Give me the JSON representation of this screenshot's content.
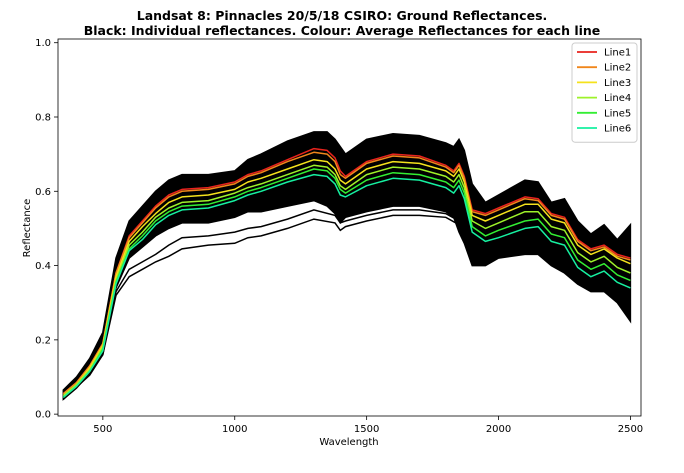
{
  "chart_data": {
    "type": "line",
    "title_line1": "Landsat 8: Pinnacles 20/5/18 CSIRO: Ground Reflectances.",
    "title_line2": "Black: Individual reflectances. Colour: Average Reflectances for each line",
    "xlabel": "Wavelength",
    "ylabel": "Reflectance",
    "xlim": [
      330,
      2540
    ],
    "ylim": [
      -0.005,
      1.01
    ],
    "xticks": [
      500,
      1000,
      1500,
      2000,
      2500
    ],
    "yticks": [
      0.0,
      0.2,
      0.4,
      0.6,
      0.8,
      1.0
    ],
    "legend_position": "top-right",
    "grid": false,
    "envelope": {
      "name": "Individual reflectances",
      "color": "#000000",
      "x": [
        350,
        400,
        450,
        500,
        550,
        600,
        650,
        700,
        750,
        800,
        900,
        1000,
        1050,
        1100,
        1200,
        1300,
        1350,
        1380,
        1400,
        1420,
        1500,
        1600,
        1700,
        1800,
        1830,
        1850,
        1870,
        1900,
        1950,
        2000,
        2100,
        2150,
        2200,
        2250,
        2300,
        2350,
        2400,
        2450,
        2500
      ],
      "upper": [
        0.065,
        0.1,
        0.15,
        0.22,
        0.42,
        0.52,
        0.56,
        0.6,
        0.63,
        0.645,
        0.645,
        0.655,
        0.685,
        0.7,
        0.735,
        0.76,
        0.76,
        0.74,
        0.72,
        0.7,
        0.74,
        0.755,
        0.75,
        0.73,
        0.72,
        0.74,
        0.71,
        0.62,
        0.57,
        0.59,
        0.63,
        0.625,
        0.57,
        0.58,
        0.52,
        0.485,
        0.51,
        0.47,
        0.51
      ],
      "lower": [
        0.04,
        0.07,
        0.11,
        0.16,
        0.34,
        0.42,
        0.45,
        0.48,
        0.5,
        0.515,
        0.515,
        0.53,
        0.545,
        0.545,
        0.56,
        0.575,
        0.56,
        0.54,
        0.515,
        0.53,
        0.545,
        0.56,
        0.56,
        0.545,
        0.53,
        0.49,
        0.46,
        0.4,
        0.4,
        0.42,
        0.43,
        0.43,
        0.4,
        0.38,
        0.35,
        0.33,
        0.33,
        0.3,
        0.25
      ]
    },
    "outliers": [
      {
        "x": [
          350,
          450,
          500,
          550,
          600,
          650,
          700,
          750,
          800,
          900,
          1000,
          1050,
          1100,
          1200,
          1300,
          1380,
          1400,
          1420,
          1500,
          1600,
          1700,
          1800,
          1850
        ],
        "y": [
          0.04,
          0.11,
          0.17,
          0.33,
          0.39,
          0.41,
          0.43,
          0.455,
          0.475,
          0.48,
          0.49,
          0.5,
          0.505,
          0.525,
          0.55,
          0.535,
          0.515,
          0.52,
          0.535,
          0.55,
          0.55,
          0.54,
          0.52
        ]
      },
      {
        "x": [
          350,
          450,
          500,
          550,
          600,
          650,
          700,
          750,
          800,
          900,
          1000,
          1050,
          1100,
          1200,
          1300,
          1380,
          1400,
          1420,
          1500,
          1600,
          1700,
          1800,
          1850
        ],
        "y": [
          0.04,
          0.105,
          0.16,
          0.32,
          0.37,
          0.39,
          0.41,
          0.425,
          0.445,
          0.455,
          0.46,
          0.475,
          0.48,
          0.5,
          0.525,
          0.515,
          0.495,
          0.505,
          0.52,
          0.535,
          0.535,
          0.53,
          0.51
        ]
      }
    ],
    "x": [
      350,
      400,
      450,
      500,
      550,
      600,
      650,
      700,
      750,
      800,
      900,
      1000,
      1050,
      1100,
      1200,
      1300,
      1350,
      1380,
      1400,
      1420,
      1500,
      1600,
      1700,
      1800,
      1830,
      1850,
      1870,
      1900,
      1950,
      2000,
      2100,
      2150,
      2200,
      2250,
      2300,
      2350,
      2400,
      2450,
      2500
    ],
    "series": [
      {
        "name": "Line1",
        "color": "#e8231d",
        "values": [
          0.055,
          0.085,
          0.13,
          0.19,
          0.38,
          0.48,
          0.52,
          0.56,
          0.59,
          0.605,
          0.61,
          0.625,
          0.645,
          0.655,
          0.685,
          0.715,
          0.71,
          0.69,
          0.655,
          0.64,
          0.68,
          0.7,
          0.695,
          0.67,
          0.655,
          0.675,
          0.64,
          0.55,
          0.54,
          0.555,
          0.585,
          0.58,
          0.54,
          0.53,
          0.47,
          0.445,
          0.455,
          0.43,
          0.42
        ]
      },
      {
        "name": "Line2",
        "color": "#f0861b",
        "values": [
          0.055,
          0.085,
          0.13,
          0.19,
          0.38,
          0.475,
          0.515,
          0.555,
          0.585,
          0.6,
          0.605,
          0.62,
          0.64,
          0.65,
          0.68,
          0.705,
          0.7,
          0.68,
          0.645,
          0.635,
          0.675,
          0.695,
          0.69,
          0.665,
          0.65,
          0.67,
          0.635,
          0.545,
          0.535,
          0.55,
          0.58,
          0.575,
          0.535,
          0.525,
          0.465,
          0.44,
          0.45,
          0.425,
          0.415
        ]
      },
      {
        "name": "Line3",
        "color": "#f5e21c",
        "values": [
          0.05,
          0.08,
          0.125,
          0.185,
          0.37,
          0.465,
          0.505,
          0.54,
          0.57,
          0.585,
          0.59,
          0.605,
          0.625,
          0.635,
          0.66,
          0.685,
          0.68,
          0.66,
          0.63,
          0.62,
          0.66,
          0.68,
          0.675,
          0.655,
          0.64,
          0.66,
          0.625,
          0.535,
          0.52,
          0.535,
          0.565,
          0.565,
          0.525,
          0.515,
          0.455,
          0.43,
          0.445,
          0.42,
          0.405
        ]
      },
      {
        "name": "Line4",
        "color": "#9ef22a",
        "values": [
          0.05,
          0.08,
          0.12,
          0.18,
          0.36,
          0.455,
          0.49,
          0.53,
          0.555,
          0.57,
          0.575,
          0.595,
          0.61,
          0.62,
          0.645,
          0.67,
          0.665,
          0.645,
          0.615,
          0.605,
          0.645,
          0.665,
          0.66,
          0.64,
          0.625,
          0.645,
          0.61,
          0.52,
          0.5,
          0.515,
          0.545,
          0.545,
          0.505,
          0.495,
          0.435,
          0.41,
          0.425,
          0.395,
          0.38
        ]
      },
      {
        "name": "Line5",
        "color": "#33ee33",
        "values": [
          0.045,
          0.075,
          0.115,
          0.175,
          0.355,
          0.445,
          0.48,
          0.52,
          0.545,
          0.56,
          0.565,
          0.585,
          0.6,
          0.61,
          0.635,
          0.66,
          0.655,
          0.635,
          0.605,
          0.595,
          0.63,
          0.65,
          0.645,
          0.625,
          0.61,
          0.63,
          0.595,
          0.505,
          0.48,
          0.495,
          0.52,
          0.525,
          0.485,
          0.475,
          0.415,
          0.39,
          0.405,
          0.375,
          0.36
        ]
      },
      {
        "name": "Line6",
        "color": "#16f0a0",
        "values": [
          0.045,
          0.075,
          0.115,
          0.17,
          0.35,
          0.44,
          0.47,
          0.51,
          0.535,
          0.55,
          0.555,
          0.575,
          0.59,
          0.6,
          0.625,
          0.645,
          0.64,
          0.62,
          0.59,
          0.585,
          0.615,
          0.635,
          0.63,
          0.61,
          0.595,
          0.615,
          0.58,
          0.49,
          0.465,
          0.475,
          0.5,
          0.505,
          0.465,
          0.455,
          0.395,
          0.37,
          0.385,
          0.355,
          0.34
        ]
      }
    ]
  }
}
